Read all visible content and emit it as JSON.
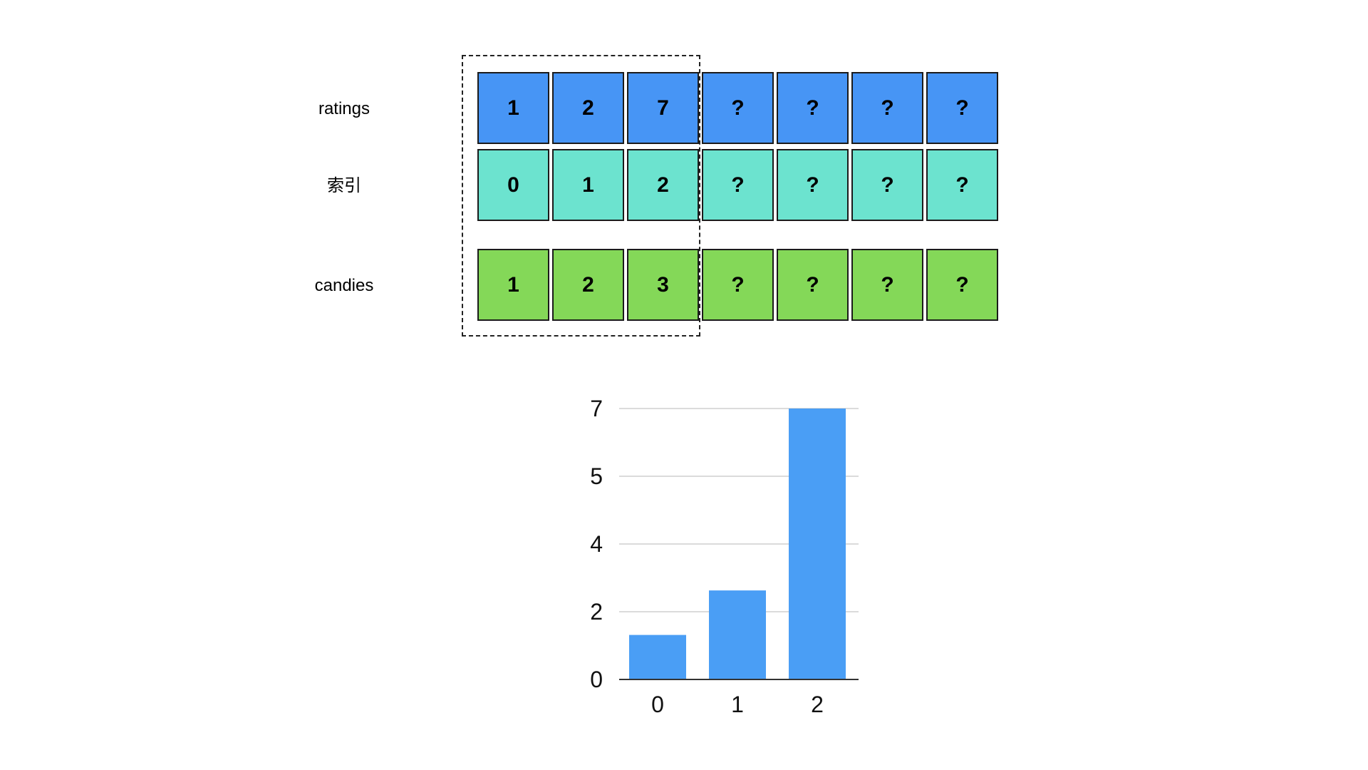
{
  "rows": [
    {
      "label": "ratings",
      "color": "#4795f5",
      "cells": [
        "1",
        "2",
        "7",
        "?",
        "?",
        "?",
        "?"
      ]
    },
    {
      "label": "索引",
      "color": "#6ce3cf",
      "cells": [
        "0",
        "1",
        "2",
        "?",
        "?",
        "?",
        "?"
      ]
    },
    {
      "label": "candies",
      "color": "#84d858",
      "cells": [
        "1",
        "2",
        "3",
        "?",
        "?",
        "?",
        "?"
      ]
    }
  ],
  "chart_data": {
    "type": "bar",
    "categories": [
      "0",
      "1",
      "2"
    ],
    "values": [
      1.15,
      2.3,
      7
    ],
    "y_ticks": [
      "0",
      "2",
      "4",
      "5",
      "7"
    ],
    "ylim": [
      0,
      7
    ],
    "grid": true,
    "bar_color": "#4a9ef5",
    "title": "",
    "xlabel": "",
    "ylabel": ""
  }
}
